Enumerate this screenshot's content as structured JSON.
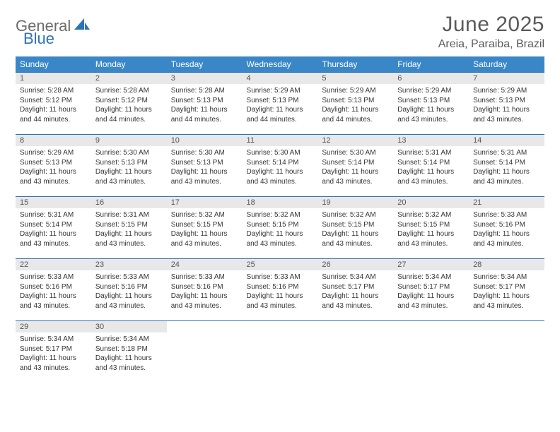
{
  "logo": {
    "text1": "General",
    "text2": "Blue"
  },
  "title": "June 2025",
  "location": "Areia, Paraiba, Brazil",
  "colors": {
    "header_bg": "#3a87c8",
    "header_text": "#ffffff",
    "daynum_bg": "#e8e8e8",
    "rule": "#2b74b8",
    "logo_gray": "#6b6b6b",
    "logo_blue": "#2b74b8"
  },
  "weekdays": [
    "Sunday",
    "Monday",
    "Tuesday",
    "Wednesday",
    "Thursday",
    "Friday",
    "Saturday"
  ],
  "weeks": [
    [
      {
        "n": "1",
        "sr": "5:28 AM",
        "ss": "5:12 PM",
        "dl": "11 hours and 44 minutes."
      },
      {
        "n": "2",
        "sr": "5:28 AM",
        "ss": "5:12 PM",
        "dl": "11 hours and 44 minutes."
      },
      {
        "n": "3",
        "sr": "5:28 AM",
        "ss": "5:13 PM",
        "dl": "11 hours and 44 minutes."
      },
      {
        "n": "4",
        "sr": "5:29 AM",
        "ss": "5:13 PM",
        "dl": "11 hours and 44 minutes."
      },
      {
        "n": "5",
        "sr": "5:29 AM",
        "ss": "5:13 PM",
        "dl": "11 hours and 44 minutes."
      },
      {
        "n": "6",
        "sr": "5:29 AM",
        "ss": "5:13 PM",
        "dl": "11 hours and 43 minutes."
      },
      {
        "n": "7",
        "sr": "5:29 AM",
        "ss": "5:13 PM",
        "dl": "11 hours and 43 minutes."
      }
    ],
    [
      {
        "n": "8",
        "sr": "5:29 AM",
        "ss": "5:13 PM",
        "dl": "11 hours and 43 minutes."
      },
      {
        "n": "9",
        "sr": "5:30 AM",
        "ss": "5:13 PM",
        "dl": "11 hours and 43 minutes."
      },
      {
        "n": "10",
        "sr": "5:30 AM",
        "ss": "5:13 PM",
        "dl": "11 hours and 43 minutes."
      },
      {
        "n": "11",
        "sr": "5:30 AM",
        "ss": "5:14 PM",
        "dl": "11 hours and 43 minutes."
      },
      {
        "n": "12",
        "sr": "5:30 AM",
        "ss": "5:14 PM",
        "dl": "11 hours and 43 minutes."
      },
      {
        "n": "13",
        "sr": "5:31 AM",
        "ss": "5:14 PM",
        "dl": "11 hours and 43 minutes."
      },
      {
        "n": "14",
        "sr": "5:31 AM",
        "ss": "5:14 PM",
        "dl": "11 hours and 43 minutes."
      }
    ],
    [
      {
        "n": "15",
        "sr": "5:31 AM",
        "ss": "5:14 PM",
        "dl": "11 hours and 43 minutes."
      },
      {
        "n": "16",
        "sr": "5:31 AM",
        "ss": "5:15 PM",
        "dl": "11 hours and 43 minutes."
      },
      {
        "n": "17",
        "sr": "5:32 AM",
        "ss": "5:15 PM",
        "dl": "11 hours and 43 minutes."
      },
      {
        "n": "18",
        "sr": "5:32 AM",
        "ss": "5:15 PM",
        "dl": "11 hours and 43 minutes."
      },
      {
        "n": "19",
        "sr": "5:32 AM",
        "ss": "5:15 PM",
        "dl": "11 hours and 43 minutes."
      },
      {
        "n": "20",
        "sr": "5:32 AM",
        "ss": "5:15 PM",
        "dl": "11 hours and 43 minutes."
      },
      {
        "n": "21",
        "sr": "5:33 AM",
        "ss": "5:16 PM",
        "dl": "11 hours and 43 minutes."
      }
    ],
    [
      {
        "n": "22",
        "sr": "5:33 AM",
        "ss": "5:16 PM",
        "dl": "11 hours and 43 minutes."
      },
      {
        "n": "23",
        "sr": "5:33 AM",
        "ss": "5:16 PM",
        "dl": "11 hours and 43 minutes."
      },
      {
        "n": "24",
        "sr": "5:33 AM",
        "ss": "5:16 PM",
        "dl": "11 hours and 43 minutes."
      },
      {
        "n": "25",
        "sr": "5:33 AM",
        "ss": "5:16 PM",
        "dl": "11 hours and 43 minutes."
      },
      {
        "n": "26",
        "sr": "5:34 AM",
        "ss": "5:17 PM",
        "dl": "11 hours and 43 minutes."
      },
      {
        "n": "27",
        "sr": "5:34 AM",
        "ss": "5:17 PM",
        "dl": "11 hours and 43 minutes."
      },
      {
        "n": "28",
        "sr": "5:34 AM",
        "ss": "5:17 PM",
        "dl": "11 hours and 43 minutes."
      }
    ],
    [
      {
        "n": "29",
        "sr": "5:34 AM",
        "ss": "5:17 PM",
        "dl": "11 hours and 43 minutes."
      },
      {
        "n": "30",
        "sr": "5:34 AM",
        "ss": "5:18 PM",
        "dl": "11 hours and 43 minutes."
      },
      null,
      null,
      null,
      null,
      null
    ]
  ],
  "labels": {
    "sunrise": "Sunrise: ",
    "sunset": "Sunset: ",
    "daylight": "Daylight: "
  }
}
